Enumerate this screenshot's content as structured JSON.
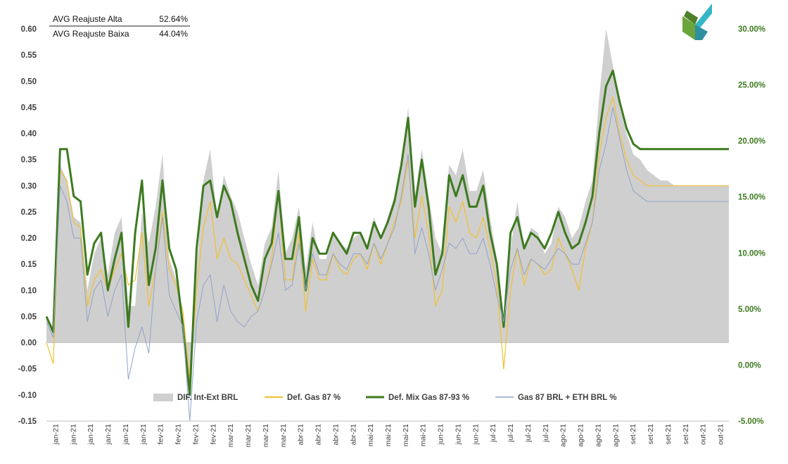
{
  "summary": {
    "rows": [
      {
        "label": "AVG Reajuste Alta",
        "value": "52.64%"
      },
      {
        "label": "AVG Reajuste Baixa",
        "value": "44.04%"
      }
    ]
  },
  "logo": {
    "name": "x-logo-icon"
  },
  "chart_data": {
    "type": "line",
    "title": "",
    "xlabel": "",
    "ylabel": "",
    "ylim": [
      -0.15,
      0.6
    ],
    "y_ticks": [
      "0.60",
      "0.55",
      "0.50",
      "0.45",
      "0.40",
      "0.35",
      "0.30",
      "0.25",
      "0.20",
      "0.15",
      "0.10",
      "0.05",
      "0.00",
      "-0.05",
      "-0.10",
      "-0.15"
    ],
    "y2lim": [
      -0.05,
      0.3
    ],
    "y2_ticks": [
      "30.00%",
      "25.00%",
      "20.00%",
      "15.00%",
      "10.00%",
      "5.00%",
      "0.00%",
      "-5.00%"
    ],
    "x_tick_labels": [
      "jan-21",
      "jan-21",
      "jan-21",
      "jan-21",
      "jan-21",
      "jan-21",
      "fev-21",
      "fev-21",
      "fev-21",
      "fev-21",
      "mar-21",
      "mar-21",
      "mar-21",
      "mar-21",
      "abr-21",
      "abr-21",
      "abr-21",
      "abr-21",
      "mai-21",
      "mai-21",
      "mai-21",
      "mai-21",
      "jun-21",
      "jun-21",
      "jun-21",
      "jul-21",
      "jul-21",
      "jul-21",
      "jul-21",
      "ago-21",
      "ago-21",
      "ago-21",
      "ago-21",
      "set-21",
      "set-21",
      "set-21",
      "set-21",
      "out-21",
      "out-21"
    ],
    "legend_position": "bottom",
    "grid": false,
    "x": [
      0,
      2,
      4,
      6,
      8,
      10,
      12,
      14,
      16,
      18,
      20,
      22,
      24,
      26,
      28,
      30,
      32,
      34,
      36,
      38,
      40,
      42,
      44,
      46,
      48,
      50,
      52,
      54,
      56,
      58,
      60,
      62,
      64,
      66,
      68,
      70,
      72,
      74,
      76,
      78,
      80,
      82,
      84,
      86,
      88,
      90,
      92,
      94,
      96,
      98,
      100,
      102,
      104,
      106,
      108,
      110,
      112,
      114,
      116,
      118,
      120,
      122,
      124,
      126,
      128,
      130,
      132,
      134,
      136,
      138,
      140,
      142,
      144,
      146,
      148,
      150,
      152,
      154,
      156,
      158,
      160,
      162,
      164,
      166,
      168,
      170,
      172,
      174,
      176,
      178,
      180,
      182,
      184,
      186,
      188,
      190,
      192,
      194,
      196,
      198,
      200
    ],
    "series": [
      {
        "name": "DIF. Int-Ext BRL",
        "axis": "left",
        "style": "area",
        "color": "#d0cfcf",
        "values": [
          0.05,
          0.03,
          0.34,
          0.31,
          0.24,
          0.23,
          0.1,
          0.17,
          0.2,
          0.13,
          0.21,
          0.24,
          0.07,
          0.07,
          0.25,
          0.19,
          0.26,
          0.36,
          0.16,
          0.12,
          0.05,
          -0.1,
          0.14,
          0.31,
          0.37,
          0.24,
          0.32,
          0.28,
          0.25,
          0.2,
          0.15,
          0.11,
          0.19,
          0.22,
          0.33,
          0.17,
          0.2,
          0.26,
          0.14,
          0.23,
          0.16,
          0.16,
          0.21,
          0.19,
          0.18,
          0.2,
          0.21,
          0.18,
          0.24,
          0.2,
          0.24,
          0.28,
          0.34,
          0.45,
          0.28,
          0.37,
          0.28,
          0.2,
          0.17,
          0.34,
          0.32,
          0.37,
          0.29,
          0.29,
          0.33,
          0.24,
          0.16,
          0.03,
          0.18,
          0.27,
          0.18,
          0.22,
          0.21,
          0.17,
          0.19,
          0.26,
          0.24,
          0.2,
          0.22,
          0.27,
          0.31,
          0.47,
          0.6,
          0.53,
          0.45,
          0.4,
          0.36,
          0.35,
          0.33,
          0.32,
          0.31,
          0.31,
          0.3,
          0.3,
          0.3,
          0.3,
          0.3,
          0.3,
          0.3,
          0.3,
          0.3
        ]
      },
      {
        "name": "Def. Gas 87 %",
        "axis": "left",
        "style": "line",
        "color": "#f0c030",
        "values": [
          0.0,
          -0.04,
          0.33,
          0.31,
          0.23,
          0.22,
          0.07,
          0.12,
          0.14,
          0.1,
          0.14,
          0.17,
          0.11,
          0.12,
          0.21,
          0.07,
          0.14,
          0.25,
          0.14,
          0.11,
          0.06,
          -0.07,
          0.1,
          0.22,
          0.27,
          0.16,
          0.2,
          0.16,
          0.15,
          0.12,
          0.09,
          0.06,
          0.1,
          0.16,
          0.29,
          0.12,
          0.12,
          0.21,
          0.06,
          0.16,
          0.12,
          0.12,
          0.17,
          0.14,
          0.13,
          0.16,
          0.17,
          0.14,
          0.19,
          0.15,
          0.19,
          0.23,
          0.27,
          0.35,
          0.2,
          0.28,
          0.21,
          0.07,
          0.1,
          0.26,
          0.23,
          0.27,
          0.21,
          0.2,
          0.24,
          0.18,
          0.11,
          -0.05,
          0.1,
          0.18,
          0.11,
          0.16,
          0.15,
          0.13,
          0.14,
          0.2,
          0.17,
          0.14,
          0.1,
          0.18,
          0.23,
          0.36,
          0.43,
          0.47,
          0.4,
          0.35,
          0.32,
          0.31,
          0.3,
          0.3,
          0.3,
          0.3,
          0.3,
          0.3,
          0.3,
          0.3,
          0.3,
          0.3,
          0.3,
          0.3,
          0.3
        ]
      },
      {
        "name": "Def. Mix Gas 87-93 %",
        "axis": "left",
        "style": "line",
        "color": "#3d7a1f",
        "values": [
          0.05,
          0.02,
          0.37,
          0.37,
          0.28,
          0.27,
          0.13,
          0.19,
          0.21,
          0.1,
          0.16,
          0.21,
          0.03,
          0.21,
          0.31,
          0.11,
          0.18,
          0.31,
          0.18,
          0.14,
          0.03,
          -0.1,
          0.18,
          0.3,
          0.31,
          0.24,
          0.3,
          0.27,
          0.21,
          0.16,
          0.11,
          0.08,
          0.16,
          0.19,
          0.29,
          0.16,
          0.16,
          0.24,
          0.1,
          0.2,
          0.17,
          0.17,
          0.21,
          0.19,
          0.17,
          0.21,
          0.21,
          0.18,
          0.23,
          0.2,
          0.23,
          0.27,
          0.34,
          0.43,
          0.26,
          0.35,
          0.26,
          0.13,
          0.17,
          0.32,
          0.28,
          0.32,
          0.26,
          0.26,
          0.3,
          0.21,
          0.15,
          0.03,
          0.21,
          0.24,
          0.18,
          0.21,
          0.2,
          0.18,
          0.21,
          0.25,
          0.21,
          0.18,
          0.19,
          0.23,
          0.28,
          0.4,
          0.49,
          0.52,
          0.46,
          0.41,
          0.38,
          0.37,
          0.37,
          0.37,
          0.37,
          0.37,
          0.37,
          0.37,
          0.37,
          0.37,
          0.37,
          0.37,
          0.37,
          0.37,
          0.37
        ]
      },
      {
        "name": "Gas 87 BRL + ETH BRL %",
        "axis": "left",
        "style": "line",
        "color": "#8fa4cc",
        "values": [
          0.04,
          0.01,
          0.3,
          0.27,
          0.2,
          0.2,
          0.04,
          0.1,
          0.12,
          0.05,
          0.1,
          0.13,
          -0.07,
          -0.01,
          0.03,
          -0.02,
          0.14,
          0.24,
          0.09,
          0.06,
          0.03,
          -0.15,
          0.04,
          0.11,
          0.13,
          0.04,
          0.11,
          0.06,
          0.04,
          0.03,
          0.05,
          0.06,
          0.1,
          0.15,
          0.21,
          0.1,
          0.11,
          0.19,
          0.1,
          0.17,
          0.13,
          0.13,
          0.17,
          0.15,
          0.14,
          0.17,
          0.17,
          0.15,
          0.19,
          0.16,
          0.19,
          0.22,
          0.28,
          0.36,
          0.17,
          0.22,
          0.17,
          0.1,
          0.14,
          0.19,
          0.18,
          0.2,
          0.17,
          0.17,
          0.2,
          0.15,
          0.09,
          0.04,
          0.14,
          0.18,
          0.13,
          0.16,
          0.15,
          0.14,
          0.16,
          0.18,
          0.17,
          0.15,
          0.15,
          0.19,
          0.23,
          0.33,
          0.38,
          0.45,
          0.39,
          0.33,
          0.29,
          0.28,
          0.27,
          0.27,
          0.27,
          0.27,
          0.27,
          0.27,
          0.27,
          0.27,
          0.27,
          0.27,
          0.27,
          0.27,
          0.27
        ]
      }
    ]
  }
}
